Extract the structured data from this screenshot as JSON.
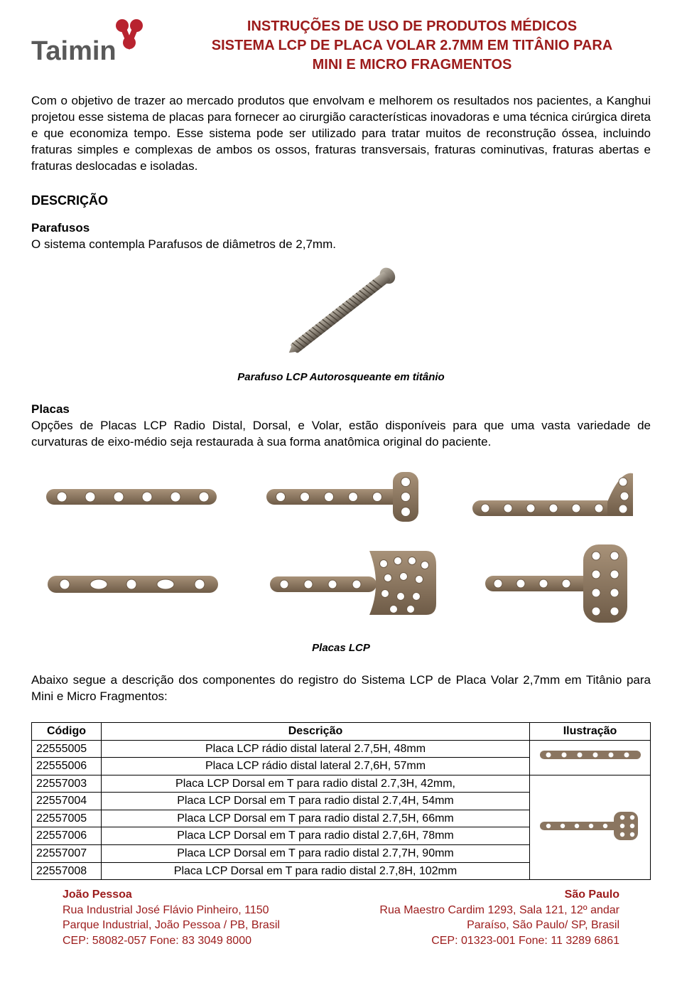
{
  "brand": "Taimin",
  "brand_color": "#9c1b1b",
  "logo_text_color": "#595959",
  "header": {
    "line1": "INSTRUÇÕES DE USO DE PRODUTOS MÉDICOS",
    "line2": "SISTEMA LCP DE PLACA VOLAR 2.7MM EM TITÂNIO PARA",
    "line3": "MINI E MICRO FRAGMENTOS"
  },
  "intro": "Com o objetivo de trazer ao mercado produtos que envolvam e melhorem os resultados nos pacientes, a Kanghui projetou esse sistema de placas para fornecer ao cirurgião características inovadoras e uma técnica cirúrgica direta e que economiza tempo. Esse sistema pode ser utilizado para tratar muitos de reconstrução óssea, incluindo fraturas simples e complexas de ambos os ossos, fraturas transversais, fraturas cominutivas, fraturas abertas e fraturas deslocadas e isoladas.",
  "descricao_h": "DESCRIÇÃO",
  "parafusos_h": "Parafusos",
  "parafusos_p": "O sistema contempla Parafusos de diâmetros de 2,7mm.",
  "parafuso_caption": "Parafuso LCP Autorosqueante em titânio",
  "placas_h": "Placas",
  "placas_p": "Opções de Placas LCP Radio Distal, Dorsal, e Volar, estão disponíveis para que uma vasta variedade de curvaturas de eixo-médio seja restaurada à sua forma anatômica original do paciente.",
  "placas_caption": "Placas LCP",
  "table_intro": "Abaixo segue a descrição dos componentes do registro do Sistema LCP de Placa Volar 2,7mm em Titânio para Mini e Micro Fragmentos:",
  "table": {
    "columns": [
      "Código",
      "Descrição",
      "Ilustração"
    ],
    "rows": [
      [
        "22555005",
        "Placa LCP rádio distal lateral 2.7,5H, 48mm"
      ],
      [
        "22555006",
        "Placa LCP rádio distal lateral 2.7,6H, 57mm"
      ],
      [
        "22557003",
        "Placa LCP Dorsal em T para radio distal 2.7,3H, 42mm,"
      ],
      [
        "22557004",
        "Placa LCP Dorsal em T para radio distal 2.7,4H, 54mm"
      ],
      [
        "22557005",
        "Placa LCP Dorsal em T para radio distal 2.7,5H, 66mm"
      ],
      [
        "22557006",
        "Placa LCP Dorsal em T para radio distal 2.7,6H, 78mm"
      ],
      [
        "22557007",
        "Placa LCP Dorsal em T para radio distal 2.7,7H, 90mm"
      ],
      [
        "22557008",
        "Placa LCP Dorsal em T para radio distal 2.7,8H, 102mm"
      ]
    ],
    "illu_group_sizes": [
      2,
      6
    ]
  },
  "footer": {
    "left": {
      "city": "João Pessoa",
      "l1": "Rua Industrial José Flávio Pinheiro, 1150",
      "l2": "Parque Industrial, João Pessoa / PB, Brasil",
      "l3": "CEP: 58082-057      Fone: 83 3049 8000"
    },
    "right": {
      "city": "São Paulo",
      "l1": "Rua Maestro Cardim 1293, Sala 121, 12º andar",
      "l2": "Paraíso, São Paulo/ SP, Brasil",
      "l3": "CEP: 01323-001 Fone: 11 3289 6861"
    }
  },
  "colors": {
    "plate": "#8a7560",
    "plate_dark": "#6e5b47",
    "screw": "#8b8378",
    "screw_dark": "#5a5248"
  }
}
